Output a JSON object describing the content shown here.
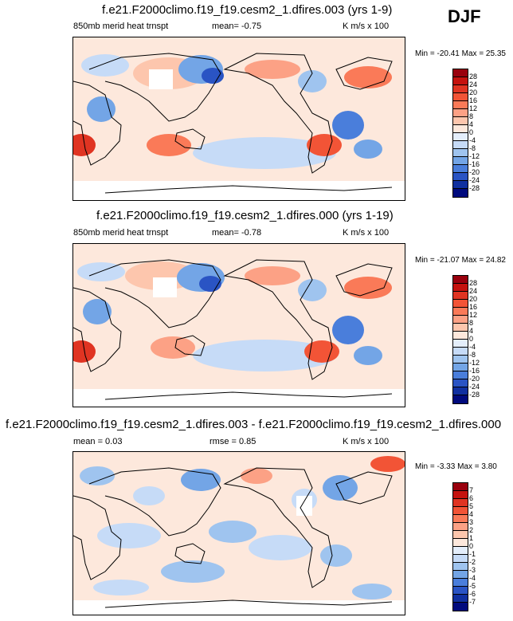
{
  "season": "DJF",
  "panels": [
    {
      "title": "f.e21.F2000climo.f19_f19.cesm2_1.dfires.003 (yrs 1-9)",
      "left_label": "850mb merid heat trnspt",
      "center_label": "mean=  -0.75",
      "units": "K m/s x 100",
      "minmax": "Min = -20.41 Max =  25.35",
      "colorbar": {
        "levels": [
          "28",
          "24",
          "20",
          "16",
          "12",
          "8",
          "4",
          "0",
          "-4",
          "-8",
          "-12",
          "-16",
          "-20",
          "-24",
          "-28"
        ],
        "colors": [
          "#99000d",
          "#c5120e",
          "#e03422",
          "#f25436",
          "#fa7a58",
          "#fca185",
          "#fdc6ad",
          "#fde8dc",
          "#e4eefb",
          "#c6dbf7",
          "#9fc4ef",
          "#73a5e6",
          "#4a7edb",
          "#2a54c4",
          "#1030a0",
          "#000a7d"
        ]
      }
    },
    {
      "title": "f.e21.F2000climo.f19_f19.cesm2_1.dfires.000 (yrs 1-19)",
      "left_label": "850mb merid heat trnspt",
      "center_label": "mean=  -0.78",
      "units": "K m/s x 100",
      "minmax": "Min = -21.07 Max =  24.82",
      "colorbar": {
        "levels": [
          "28",
          "24",
          "20",
          "16",
          "12",
          "8",
          "4",
          "0",
          "-4",
          "-8",
          "-12",
          "-16",
          "-20",
          "-24",
          "-28"
        ],
        "colors": [
          "#99000d",
          "#c5120e",
          "#e03422",
          "#f25436",
          "#fa7a58",
          "#fca185",
          "#fdc6ad",
          "#fde8dc",
          "#e4eefb",
          "#c6dbf7",
          "#9fc4ef",
          "#73a5e6",
          "#4a7edb",
          "#2a54c4",
          "#1030a0",
          "#000a7d"
        ]
      }
    },
    {
      "title": "f.e21.F2000climo.f19_f19.cesm2_1.dfires.003 - f.e21.F2000climo.f19_f19.cesm2_1.dfires.000",
      "left_label": "mean =  0.03",
      "center_label": "rmse =  0.85",
      "units": "K m/s x 100",
      "minmax": "Min =  -3.33 Max =   3.80",
      "colorbar": {
        "levels": [
          "7",
          "6",
          "5",
          "4",
          "3",
          "2",
          "1",
          "0",
          "-1",
          "-2",
          "-3",
          "-4",
          "-5",
          "-6",
          "-7"
        ],
        "colors": [
          "#99000d",
          "#c5120e",
          "#e03422",
          "#f25436",
          "#fa7a58",
          "#fca185",
          "#fdc6ad",
          "#fde8dc",
          "#e4eefb",
          "#c6dbf7",
          "#9fc4ef",
          "#73a5e6",
          "#4a7edb",
          "#2a54c4",
          "#1030a0",
          "#000a7d"
        ]
      }
    }
  ]
}
